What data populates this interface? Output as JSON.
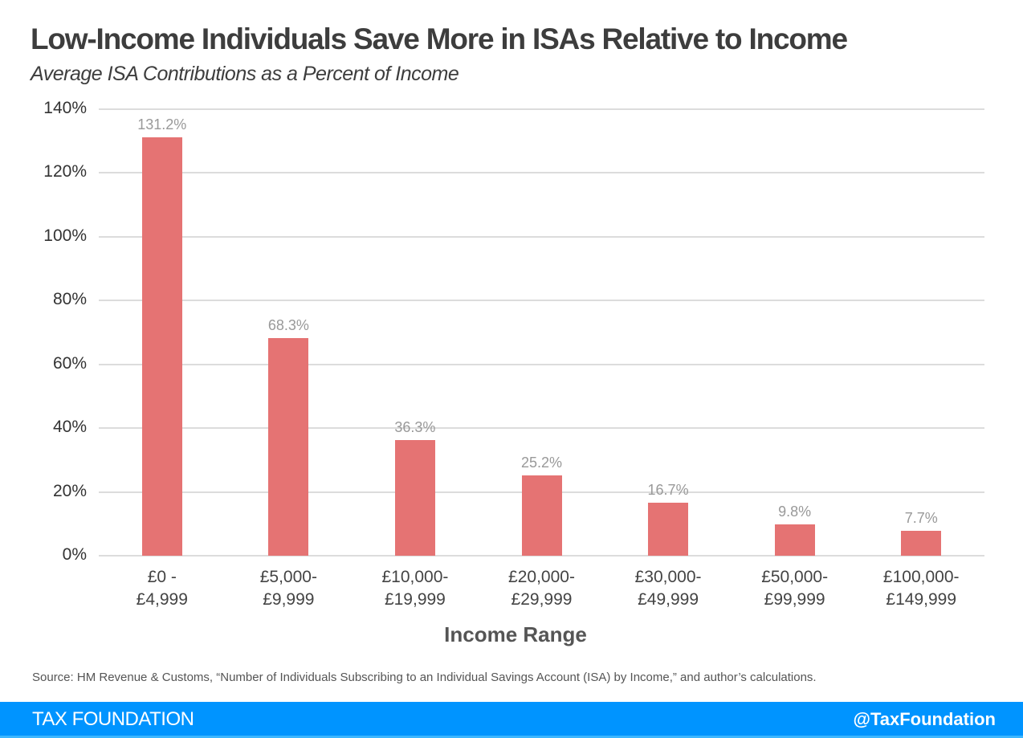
{
  "header": {
    "title": "Low-Income Individuals Save More in ISAs Relative to Income",
    "subtitle": "Average ISA Contributions as a Percent of Income"
  },
  "chart_data": {
    "type": "bar",
    "title": "Low-Income Individuals Save More in ISAs Relative to Income",
    "subtitle": "Average ISA Contributions as a Percent of Income",
    "xlabel": "Income Range",
    "ylabel": "",
    "categories": [
      "£0 - £4,999",
      "£5,000-£9,999",
      "£10,000-£19,999",
      "£20,000-£29,999",
      "£30,000-£49,999",
      "£50,000-£99,999",
      "£100,000-£149,999"
    ],
    "category_lines": [
      [
        "£0 -",
        "£4,999"
      ],
      [
        "£5,000-",
        "£9,999"
      ],
      [
        "£10,000-",
        "£19,999"
      ],
      [
        "£20,000-",
        "£29,999"
      ],
      [
        "£30,000-",
        "£49,999"
      ],
      [
        "£50,000-",
        "£99,999"
      ],
      [
        "£100,000-",
        "£149,999"
      ]
    ],
    "values": [
      131.2,
      68.3,
      36.3,
      25.2,
      16.7,
      9.8,
      7.7
    ],
    "data_labels": [
      "131.2%",
      "68.3%",
      "36.3%",
      "25.2%",
      "16.7%",
      "9.8%",
      "7.7%"
    ],
    "ylim": [
      0,
      140
    ],
    "yticks": [
      "0%",
      "20%",
      "40%",
      "60%",
      "80%",
      "100%",
      "120%",
      "140%"
    ],
    "grid": true,
    "legend": "none",
    "bar_color": "#e57373"
  },
  "footer": {
    "source": "Source: HM Revenue & Customs, “Number of Individuals Subscribing to an Individual Savings Account (ISA) by Income,” and author’s calculations.",
    "brand": "TAX FOUNDATION",
    "handle": "@TaxFoundation",
    "color": "#0094ff"
  }
}
